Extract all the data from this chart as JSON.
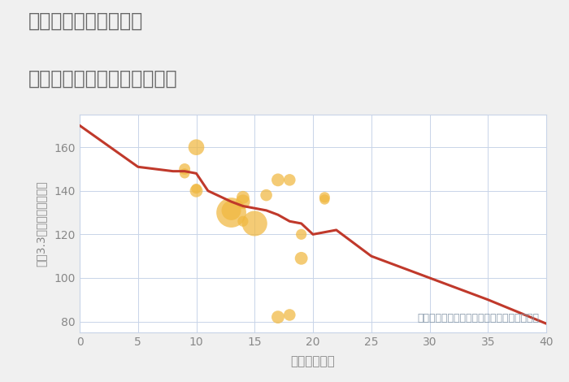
{
  "title_line1": "兵庫県西宮市建石町の",
  "title_line2": "築年数別中古マンション価格",
  "xlabel": "築年数（年）",
  "ylabel": "坪（3.3㎡）単価（万円）",
  "annotation": "円の大きさは、取引のあった物件面積を示す",
  "bg_color": "#f0f0f0",
  "plot_bg_color": "#ffffff",
  "grid_color": "#c8d4e8",
  "line_color": "#c0392b",
  "scatter_color": "#f0b840",
  "scatter_alpha": 0.72,
  "xlim": [
    0,
    40
  ],
  "ylim": [
    75,
    175
  ],
  "xticks": [
    0,
    5,
    10,
    15,
    20,
    25,
    30,
    35,
    40
  ],
  "yticks": [
    80,
    100,
    120,
    140,
    160
  ],
  "trend_x": [
    0,
    5,
    8,
    9,
    10,
    11,
    13,
    14,
    15,
    16,
    17,
    18,
    19,
    20,
    21,
    22,
    25,
    30,
    35,
    40
  ],
  "trend_y": [
    170,
    151,
    149,
    149,
    148,
    140,
    135,
    133,
    132,
    131,
    129,
    126,
    125,
    120,
    121,
    122,
    110,
    100,
    90,
    79
  ],
  "scatter_x": [
    10,
    9,
    9,
    10,
    10,
    13,
    13,
    14,
    14,
    14,
    15,
    16,
    17,
    18,
    19,
    21,
    21,
    17,
    18,
    19
  ],
  "scatter_y": [
    160,
    150,
    148,
    141,
    140,
    130,
    131,
    135,
    137,
    126,
    125,
    138,
    145,
    145,
    109,
    137,
    136,
    82,
    83,
    120
  ],
  "scatter_size": [
    200,
    100,
    80,
    80,
    130,
    700,
    300,
    160,
    130,
    90,
    500,
    110,
    130,
    110,
    130,
    90,
    80,
    130,
    110,
    90
  ],
  "title_color": "#666666",
  "axis_color": "#888888",
  "tick_color": "#888888",
  "xlabel_fontsize": 11,
  "ylabel_fontsize": 10,
  "title_fontsize": 17,
  "annotation_color": "#8899aa",
  "annotation_fontsize": 9
}
